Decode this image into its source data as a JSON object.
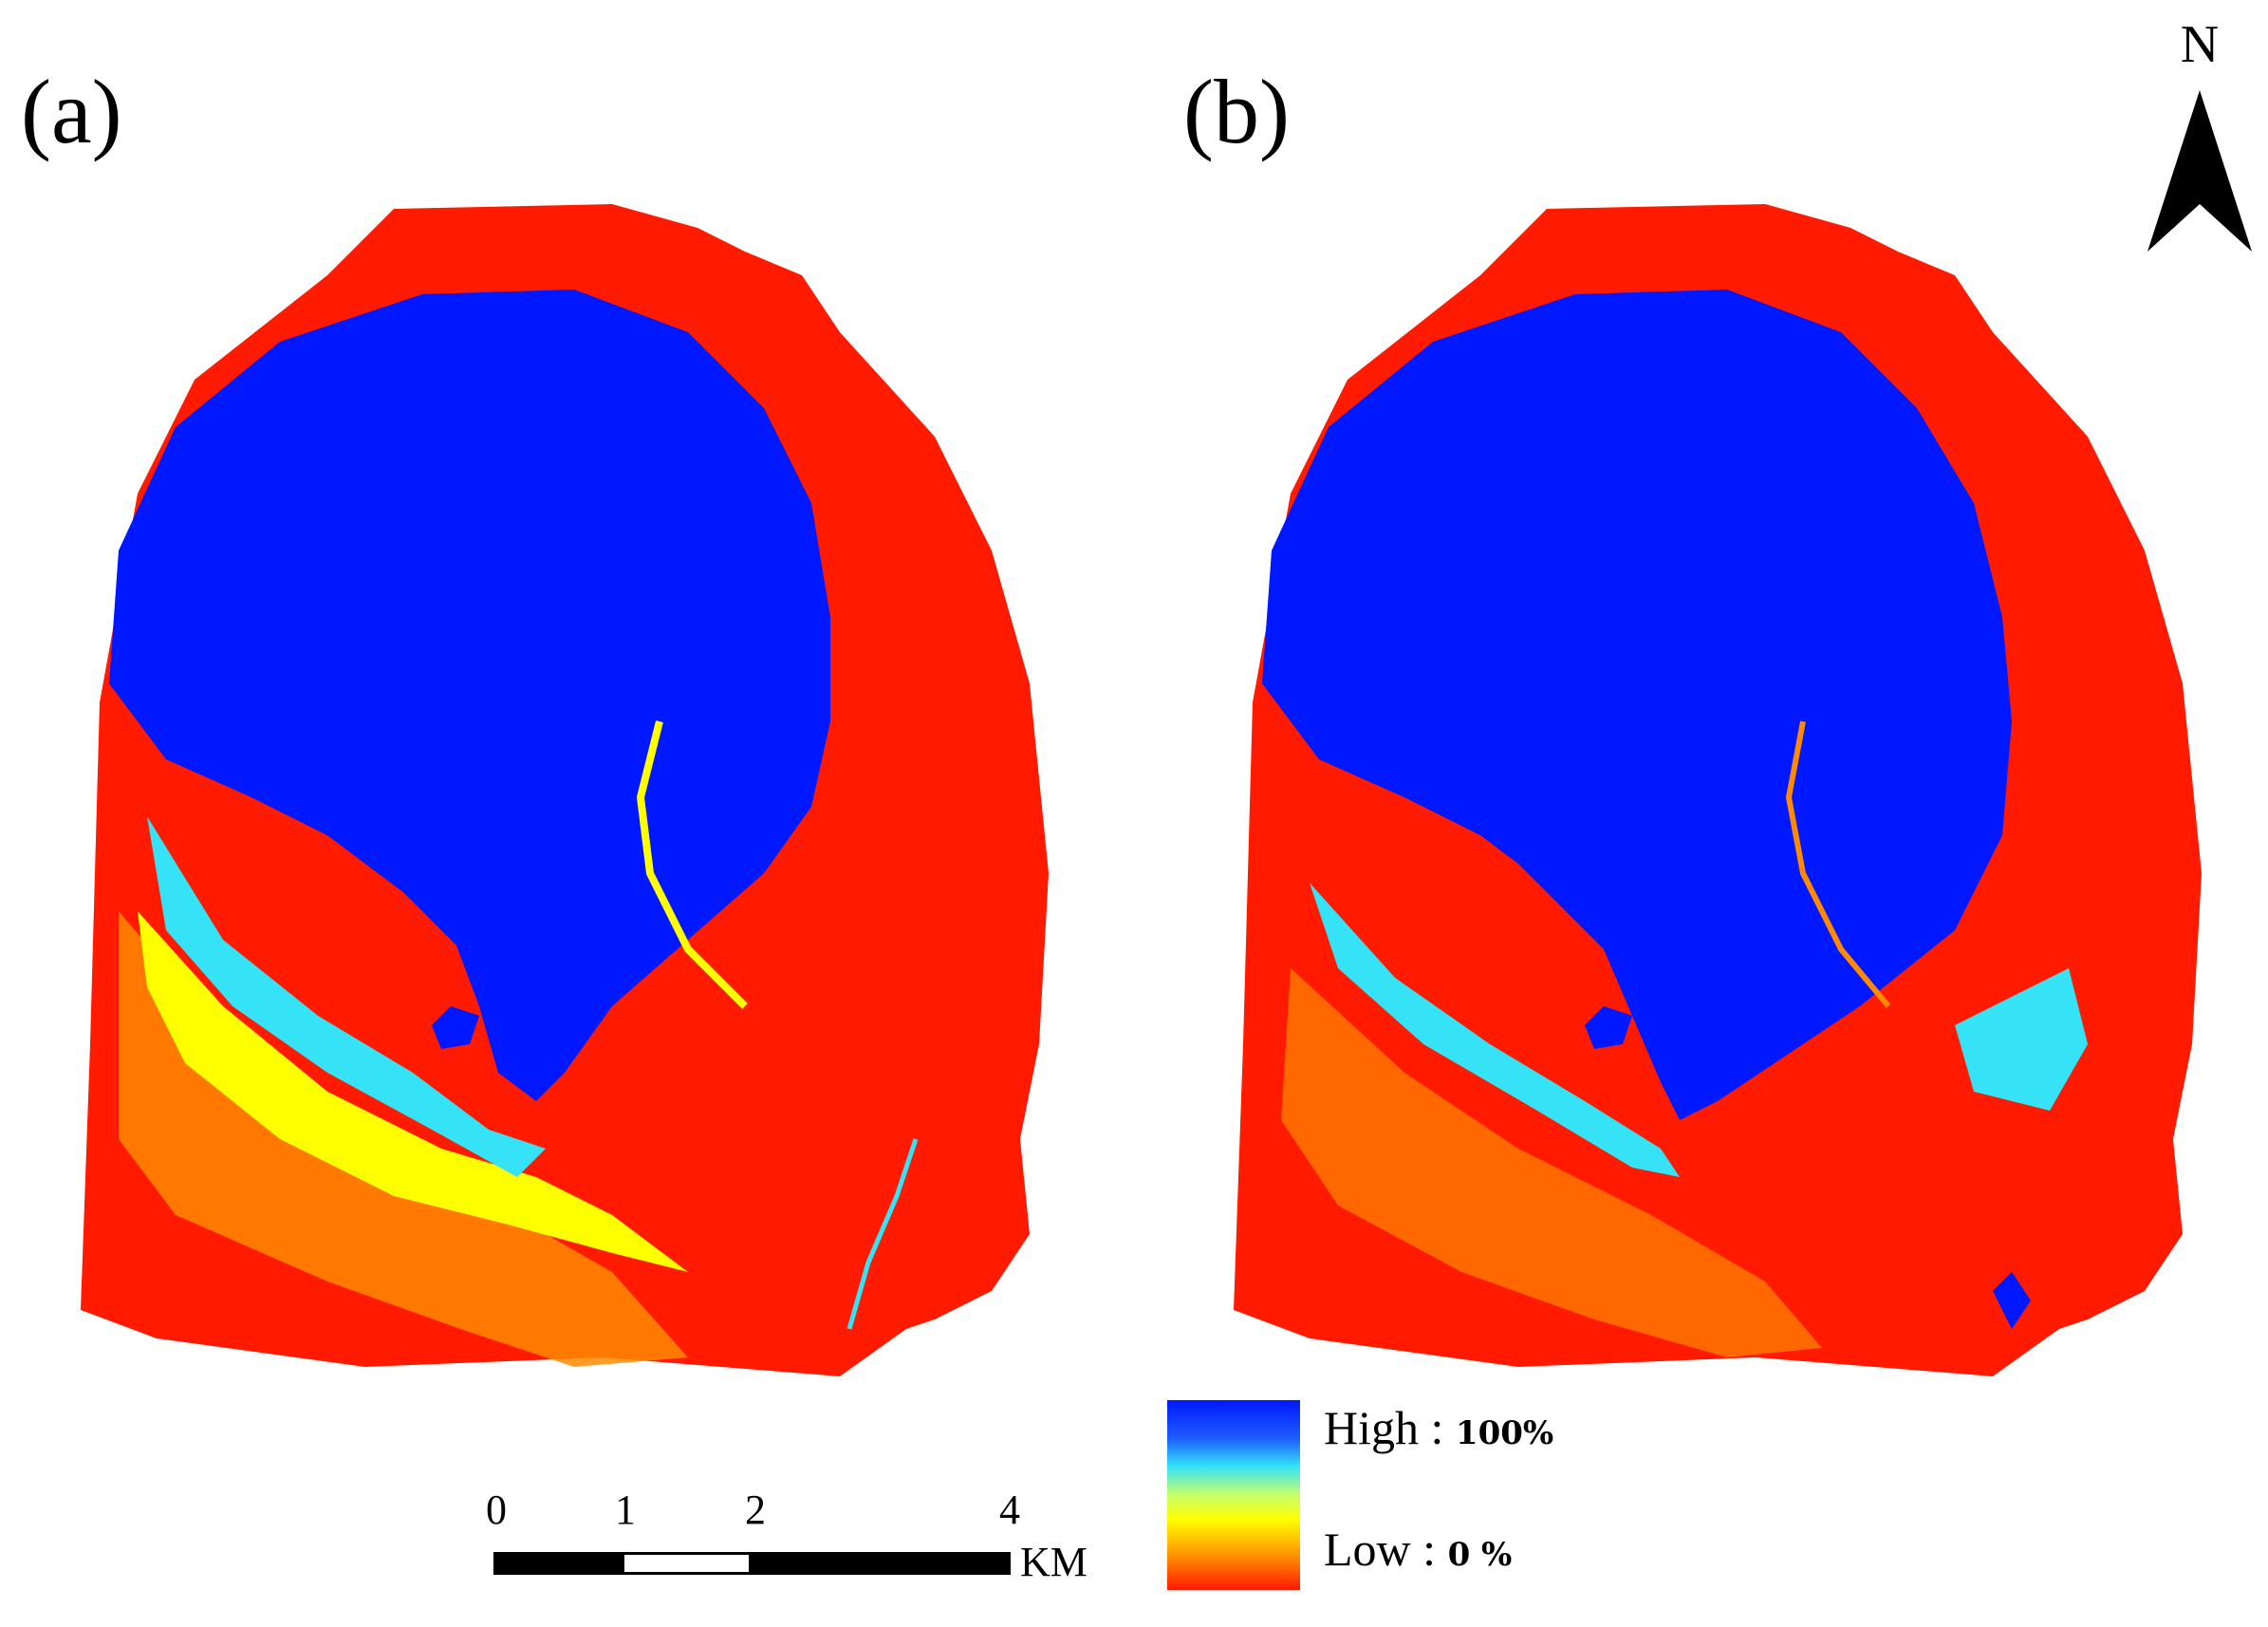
{
  "panels": [
    {
      "id": "a",
      "label": "(a)"
    },
    {
      "id": "b",
      "label": "(b)"
    }
  ],
  "north_arrow": {
    "label": "N"
  },
  "legend": {
    "high_label": "High",
    "high_value": "100%",
    "low_label": "Low",
    "low_value": "0 %",
    "separator": ":",
    "colors": {
      "high": "#0018ff",
      "mid_high": "#35e2f6",
      "mid": "#ffff00",
      "low": "#ff1a00"
    }
  },
  "scale_bar": {
    "ticks": [
      "0",
      "1",
      "2",
      "4"
    ],
    "unit": "KM"
  },
  "colors": {
    "low": "#ff1a00",
    "orange": "#ff8a00",
    "yellow": "#ffff00",
    "cyan": "#35e2f6",
    "high": "#0018ff"
  }
}
